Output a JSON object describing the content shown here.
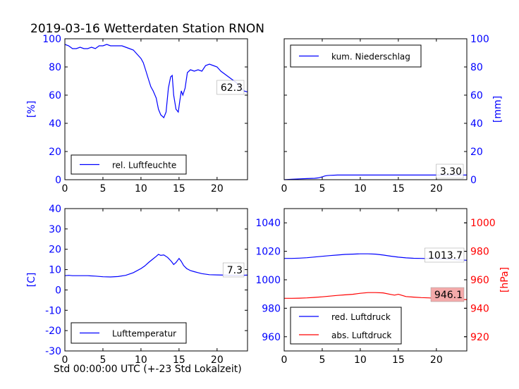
{
  "figure": {
    "title": "2019-03-16 Wetterdaten Station RNON",
    "x_caption": "Std 00:00:00 UTC (+-23 Std Lokalzeit)",
    "colors": {
      "blue": "#0000ff",
      "red": "#ff0000",
      "axes": "#000000",
      "label_box_red": "#f4aaaa"
    }
  },
  "chart_data": [
    {
      "id": "humidity",
      "type": "line",
      "xlim": [
        0,
        24
      ],
      "ylim": [
        0,
        100
      ],
      "xticks": [
        0,
        5,
        10,
        15,
        20
      ],
      "yticks": [
        0,
        20,
        40,
        60,
        80,
        100
      ],
      "ylabel": "[%]",
      "ylabel_color": "#0000ff",
      "tick_color": "#0000ff",
      "axis_side": "left",
      "legend": "lower-left",
      "last_value_label": "62.3",
      "series": [
        {
          "name": "rel. Luftfeuchte",
          "color": "#0000ff",
          "x": [
            0,
            0.5,
            1,
            1.5,
            2,
            2.5,
            3,
            3.5,
            4,
            4.5,
            5,
            5.5,
            6,
            6.5,
            7,
            7.5,
            8,
            8.5,
            9,
            9.5,
            10,
            10.3,
            10.6,
            11,
            11.3,
            11.6,
            12,
            12.3,
            12.6,
            13,
            13.3,
            13.6,
            13.9,
            14.1,
            14.3,
            14.6,
            14.9,
            15.1,
            15.3,
            15.5,
            15.8,
            16.1,
            16.5,
            17,
            17.5,
            18,
            18.5,
            19,
            19.5,
            20,
            20.5,
            21,
            21.5,
            22,
            22.5,
            23,
            23.5,
            24
          ],
          "y": [
            96,
            95,
            93,
            93,
            94,
            93,
            93,
            94,
            93,
            95,
            95,
            96,
            95,
            95,
            95,
            95,
            94,
            93,
            92,
            89,
            86,
            83,
            78,
            71,
            66,
            63,
            58,
            50,
            46,
            44,
            48,
            65,
            73,
            74,
            60,
            50,
            48,
            56,
            63,
            60,
            65,
            76,
            78,
            77,
            78,
            77,
            81,
            82,
            81,
            80,
            77,
            75,
            73,
            71,
            69,
            66,
            63,
            62.3
          ]
        }
      ]
    },
    {
      "id": "precipitation",
      "type": "line",
      "xlim": [
        0,
        24
      ],
      "ylim": [
        0,
        100
      ],
      "xticks": [
        0,
        5,
        10,
        15,
        20
      ],
      "yticks": [
        0,
        20,
        40,
        60,
        80,
        100
      ],
      "ylabel": "[mm]",
      "ylabel_color": "#0000ff",
      "tick_color": "#0000ff",
      "axis_side": "right",
      "legend": "upper-left",
      "last_value_label": "3.30",
      "series": [
        {
          "name": "kum. Niederschlag",
          "color": "#0000ff",
          "x": [
            0,
            1,
            2,
            3,
            4,
            4.5,
            5,
            5.3,
            5.6,
            6,
            6.5,
            7,
            8,
            10,
            12,
            14,
            16,
            18,
            20,
            22,
            24
          ],
          "y": [
            0,
            0.3,
            0.6,
            0.8,
            1.0,
            1.3,
            2.0,
            2.6,
            2.9,
            3.1,
            3.2,
            3.3,
            3.3,
            3.3,
            3.3,
            3.3,
            3.3,
            3.3,
            3.3,
            3.3,
            3.3
          ]
        }
      ]
    },
    {
      "id": "temperature",
      "type": "line",
      "xlim": [
        0,
        24
      ],
      "ylim": [
        -30,
        40
      ],
      "xticks": [
        0,
        5,
        10,
        15,
        20
      ],
      "yticks": [
        -30,
        -20,
        -10,
        0,
        10,
        20,
        30,
        40
      ],
      "ylabel": "[C]",
      "ylabel_color": "#0000ff",
      "tick_color": "#0000ff",
      "axis_side": "left",
      "legend": "lower-left",
      "last_value_label": "7.3",
      "series": [
        {
          "name": "Lufttemperatur",
          "color": "#0000ff",
          "x": [
            0,
            0.5,
            1,
            2,
            3,
            4,
            5,
            6,
            7,
            8,
            9,
            10,
            10.5,
            11,
            11.5,
            12,
            12.3,
            12.6,
            13,
            13.5,
            14,
            14.3,
            14.6,
            15,
            15.3,
            15.6,
            16,
            16.5,
            17,
            17.5,
            18,
            19,
            20,
            21,
            22,
            23,
            24
          ],
          "y": [
            7,
            7.2,
            7,
            7,
            7,
            6.8,
            6.5,
            6.4,
            6.6,
            7.2,
            8.5,
            10.5,
            11.8,
            13.5,
            15,
            16.5,
            17.5,
            17,
            17.2,
            16,
            14,
            12.5,
            13.5,
            15.5,
            14,
            12,
            10.5,
            9.5,
            9,
            8.5,
            8,
            7.5,
            7.4,
            7.3,
            7.2,
            7.2,
            7.3
          ]
        }
      ]
    },
    {
      "id": "pressure",
      "type": "line",
      "xlim": [
        0,
        24
      ],
      "ylim": [
        950,
        1050
      ],
      "ylim_right": [
        910,
        1010
      ],
      "xticks": [
        0,
        5,
        10,
        15,
        20
      ],
      "yticks": [
        960,
        980,
        1000,
        1020,
        1040
      ],
      "yticks_right": [
        920,
        940,
        960,
        980,
        1000
      ],
      "ylabel": "",
      "ylabel_right": "[hPa]",
      "tick_color": "#0000ff",
      "tick_color_right": "#ff0000",
      "ylabel_right_color": "#ff0000",
      "legend": "lower-left",
      "last_value_labels": [
        "1013.7",
        "946.1"
      ],
      "series": [
        {
          "name": "red. Luftdruck",
          "color": "#0000ff",
          "axis": "left",
          "x": [
            0,
            1,
            2,
            3,
            4,
            5,
            6,
            7,
            8,
            9,
            10,
            11,
            12,
            13,
            14,
            15,
            16,
            17,
            18,
            19,
            20,
            21,
            22,
            23,
            24
          ],
          "y": [
            1015,
            1015,
            1015.2,
            1015.5,
            1016,
            1016.5,
            1017,
            1017.4,
            1017.8,
            1018,
            1018.2,
            1018.2,
            1018,
            1017.4,
            1016.6,
            1015.9,
            1015.4,
            1015.1,
            1015,
            1014.9,
            1014.8,
            1014.6,
            1014.3,
            1014,
            1013.7
          ]
        },
        {
          "name": "abs. Luftdruck",
          "color": "#ff0000",
          "axis": "right",
          "x": [
            0,
            1,
            2,
            3,
            4,
            5,
            6,
            7,
            8,
            9,
            10,
            11,
            12,
            13,
            14,
            14.5,
            15,
            15.5,
            16,
            17,
            18,
            19,
            20,
            21,
            22,
            23,
            24
          ],
          "y": [
            947,
            947,
            947.1,
            947.3,
            947.6,
            948,
            948.5,
            949,
            949.4,
            949.8,
            950.5,
            951,
            951,
            950.8,
            949.7,
            949.2,
            949.8,
            949,
            948.2,
            947.8,
            947.5,
            947.3,
            947,
            946.7,
            946.4,
            946.2,
            946.1
          ]
        }
      ]
    }
  ]
}
